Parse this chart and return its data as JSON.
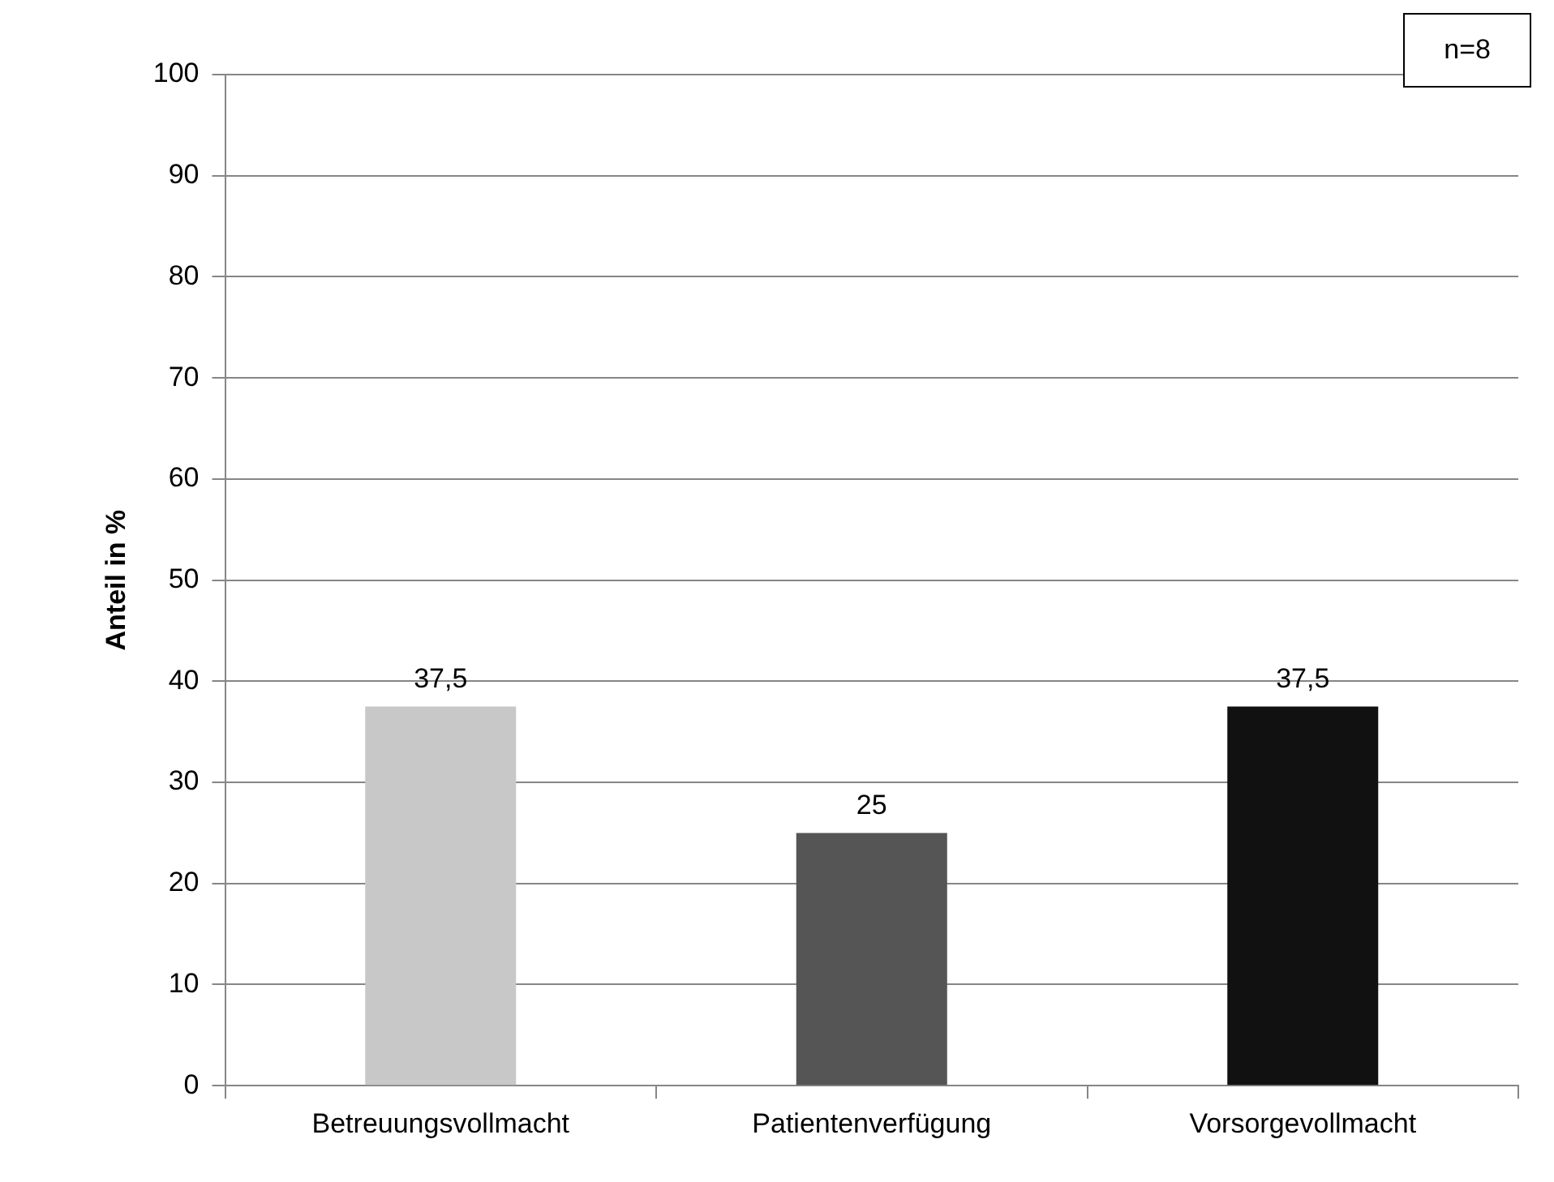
{
  "chart_data": {
    "type": "bar",
    "ylabel": "Anteil in %",
    "categories": [
      "Betreuungsvollmacht",
      "Patientenverfügung",
      "Vorsorgevollmacht"
    ],
    "values": [
      37.5,
      25,
      37.5
    ],
    "value_labels": [
      "37,5",
      "25",
      "37,5"
    ],
    "colors": [
      "#c8c8c8",
      "#555555",
      "#111111"
    ],
    "ylim": [
      0,
      100
    ],
    "yticks": [
      0,
      10,
      20,
      30,
      40,
      50,
      60,
      70,
      80,
      90,
      100
    ],
    "grid": "y",
    "annotations": [
      "n=8"
    ]
  }
}
